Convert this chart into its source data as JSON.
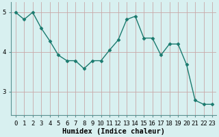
{
  "x": [
    0,
    1,
    2,
    3,
    4,
    5,
    6,
    7,
    8,
    9,
    10,
    11,
    12,
    13,
    14,
    15,
    16,
    17,
    18,
    19,
    20,
    21,
    22,
    23
  ],
  "y": [
    5.0,
    4.82,
    5.0,
    4.6,
    4.28,
    3.92,
    3.78,
    3.78,
    3.58,
    3.78,
    3.78,
    4.05,
    4.3,
    4.82,
    4.9,
    4.35,
    4.35,
    3.92,
    4.2,
    4.2,
    3.68,
    2.78,
    2.68,
    2.68
  ],
  "line_color": "#1a7a6e",
  "marker": "D",
  "marker_size": 2.5,
  "bg_color": "#d8f0f0",
  "grid_color_v": "#c8a8a8",
  "grid_color_h": "#c8a8a8",
  "xlabel": "Humidex (Indice chaleur)",
  "xlim": [
    -0.5,
    23.5
  ],
  "ylim": [
    2.4,
    5.25
  ],
  "yticks": [
    3,
    4,
    5
  ],
  "xtick_labels": [
    "0",
    "1",
    "2",
    "3",
    "4",
    "5",
    "6",
    "7",
    "8",
    "9",
    "10",
    "11",
    "12",
    "13",
    "14",
    "15",
    "16",
    "17",
    "18",
    "19",
    "20",
    "21",
    "22",
    "23"
  ],
  "xlabel_fontsize": 7.5,
  "tick_fontsize": 6.5,
  "line_width": 1.0,
  "spine_color": "#5a9090"
}
